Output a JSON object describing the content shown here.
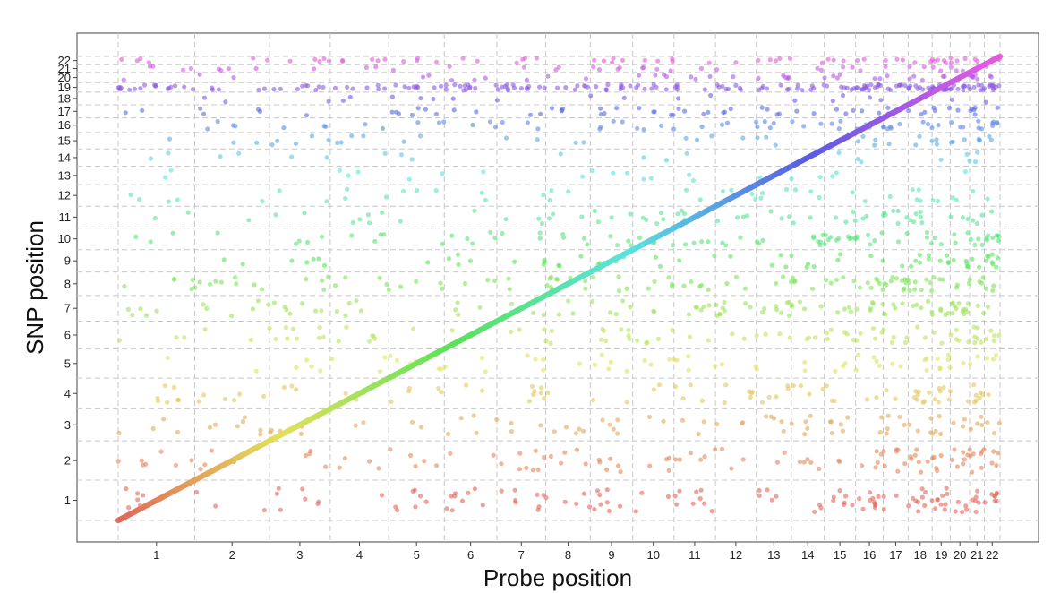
{
  "chart_data": {
    "type": "scatter",
    "title": "",
    "xlabel": "Probe position",
    "ylabel": "SNP position",
    "x_ticks": [
      "1",
      "2",
      "3",
      "4",
      "5",
      "6",
      "7",
      "8",
      "9",
      "10",
      "11",
      "12",
      "13",
      "14",
      "15",
      "16",
      "17",
      "18",
      "19",
      "20",
      "21",
      "22"
    ],
    "y_ticks": [
      "1",
      "2",
      "3",
      "4",
      "5",
      "6",
      "7",
      "8",
      "9",
      "10",
      "11",
      "12",
      "13",
      "14",
      "15",
      "16",
      "17",
      "18",
      "19",
      "20",
      "21",
      "22"
    ],
    "chromosomes": [
      1,
      2,
      3,
      4,
      5,
      6,
      7,
      8,
      9,
      10,
      11,
      12,
      13,
      14,
      15,
      16,
      17,
      18,
      19,
      20,
      21,
      22
    ],
    "grid": "dashed",
    "legend": "none",
    "series": [
      {
        "name": "",
        "values_description": ""
      }
    ],
    "diagonal_cis": {
      "from_chromosome": 1,
      "to_chromosome": 22
    },
    "colors": {
      "1": "#F8766D",
      "2": "#E58700",
      "3": "#C99800",
      "4": "#A3A500",
      "5": "#6BB100",
      "6": "#00BA38",
      "7": "#00BF7D",
      "8": "#00C0AF",
      "9": "#00BCD8",
      "10": "#00B0F6",
      "11": "#619CFF",
      "12": "#B983FF",
      "13": "#E76BF3",
      "14": "#FD61D1",
      "15": "#FF67A4",
      "16": "#F8766D",
      "17": "#E58700",
      "18": "#C99800",
      "19": "#A3A500",
      "20": "#6BB100",
      "21": "#00BA38",
      "22": "#00BF7D"
    }
  }
}
